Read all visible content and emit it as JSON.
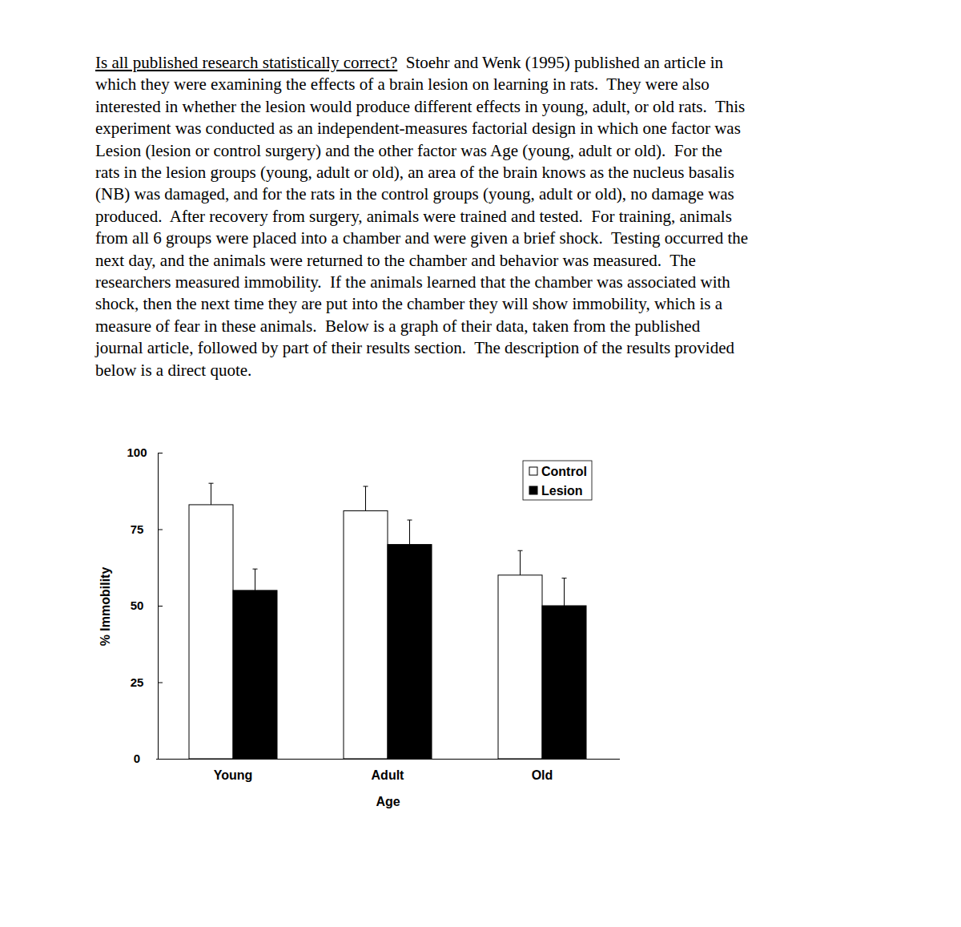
{
  "document": {
    "heading": "Is all published research statistically correct?",
    "lines": [
      "  Stoehr and Wenk (1995) published an article in",
      "which they were examining the effects of a brain lesion on learning in rats.  They were also",
      "interested in whether the lesion would produce different effects in young, adult, or old rats.  This",
      "experiment was conducted as an independent-measures factorial design in which one factor was",
      "Lesion (lesion or control surgery) and the other factor was Age (young, adult or old).  For the",
      "rats in the lesion groups (young, adult or old), an area of the brain knows as the nucleus basalis",
      "(NB) was damaged, and for the rats in the control groups (young, adult or old), no damage was",
      "produced.  After recovery from surgery, animals were trained and tested.  For training, animals",
      "from all 6 groups were placed into a chamber and were given a brief shock.  Testing occurred the",
      "next day, and the animals were returned to the chamber and behavior was measured.  The",
      "researchers measured immobility.  If the animals learned that the chamber was associated with",
      "shock, then the next time they are put into the chamber they will show immobility, which is a",
      "measure of fear in these animals.  Below is a graph of their data, taken from the published",
      "journal article, followed by part of their results section.  The description of the results provided",
      "below is a direct quote."
    ]
  },
  "chart_data": {
    "type": "bar",
    "categories": [
      "Young",
      "Adult",
      "Old"
    ],
    "series": [
      {
        "name": "Control",
        "color": "#ffffff",
        "values": [
          83,
          81,
          60
        ],
        "errors": [
          7,
          8,
          8
        ]
      },
      {
        "name": "Lesion",
        "color": "#000000",
        "values": [
          55,
          70,
          50
        ],
        "errors": [
          7,
          8,
          9
        ]
      }
    ],
    "xlabel": "Age",
    "ylabel": "% Immobility",
    "ylim": [
      0,
      100
    ],
    "yticks": [
      0,
      25,
      50,
      75,
      100
    ],
    "legend": "upper right"
  }
}
